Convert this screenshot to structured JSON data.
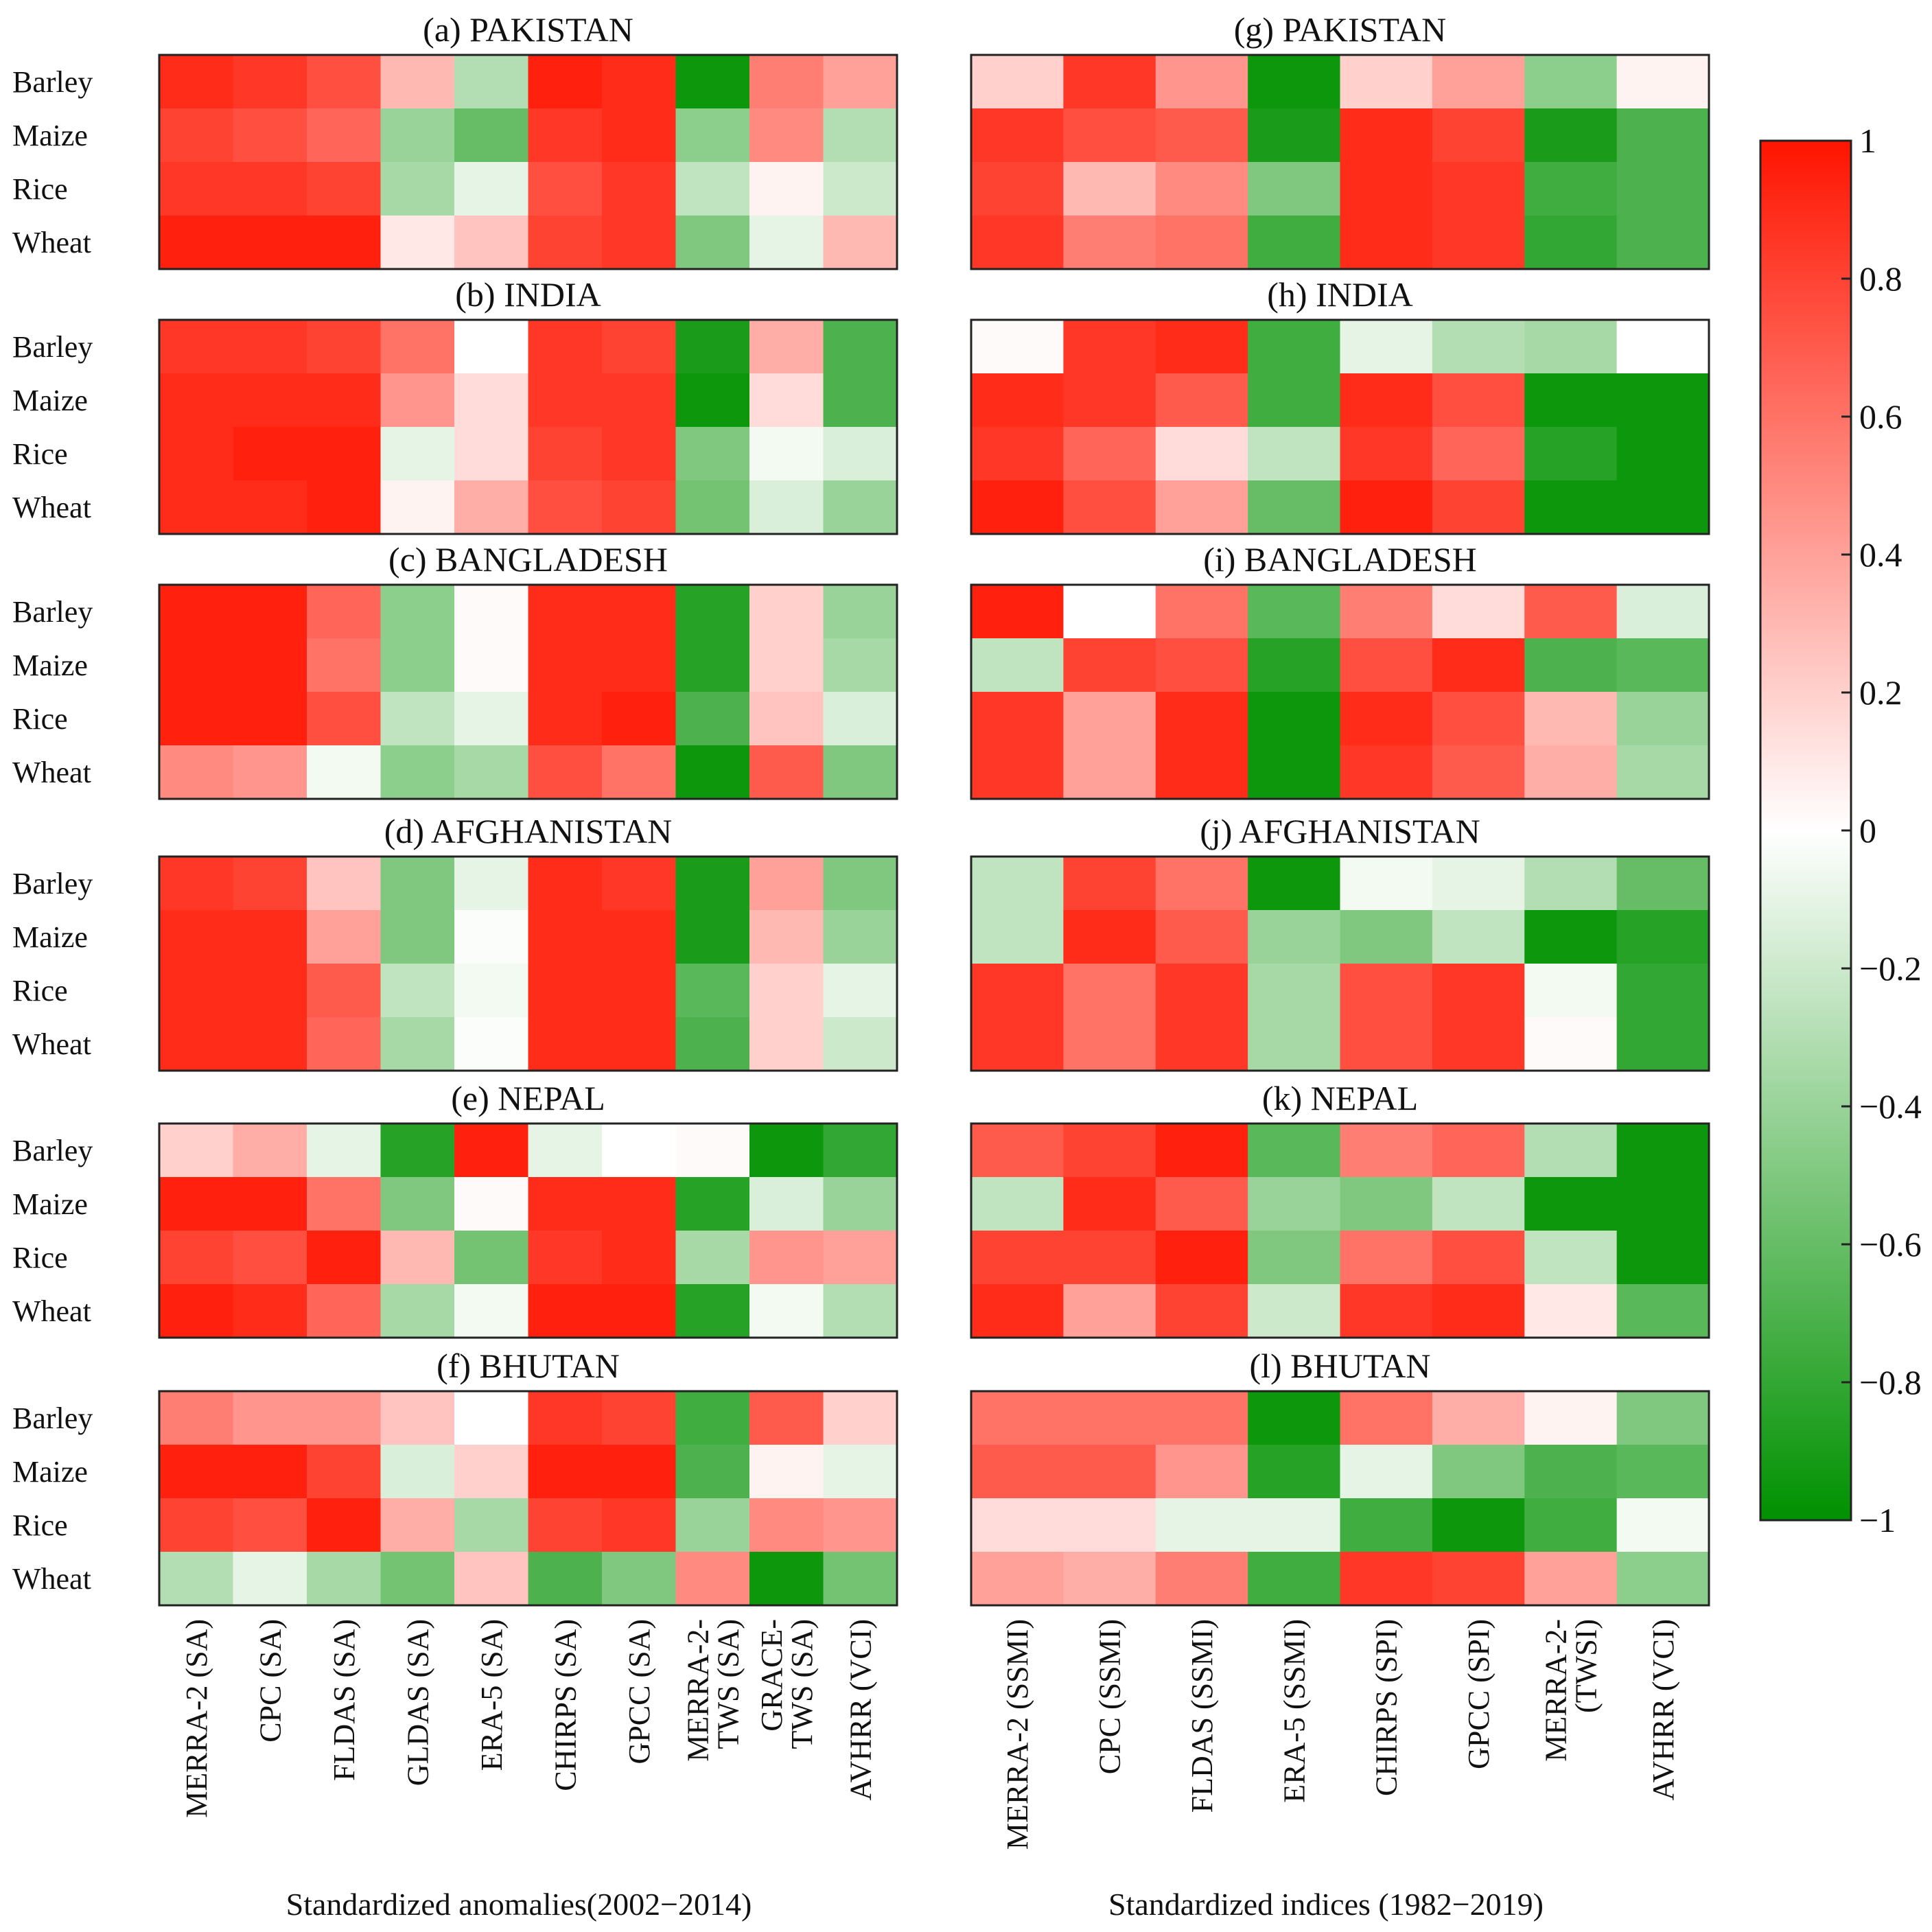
{
  "chart_data": {
    "type": "heatmap",
    "colorbar": {
      "range": [
        -1,
        1
      ],
      "ticks": [
        "1",
        "0.8",
        "0.6",
        "0.4",
        "0.2",
        "0",
        "−0.2",
        "−0.4",
        "−0.6",
        "−0.8",
        "−1"
      ],
      "tick_values": [
        1,
        0.8,
        0.6,
        0.4,
        0.2,
        0,
        -0.2,
        -0.4,
        -0.6,
        -0.8,
        -1
      ],
      "colors": {
        "negative": "#009100",
        "zero": "#ffffff",
        "positive": "#ff1400"
      }
    },
    "rows": [
      "Barley",
      "Maize",
      "Rice",
      "Wheat"
    ],
    "left": {
      "xlabel": "Standardized anomalies(2002−2014)",
      "columns": [
        [
          "MERRA-2 (SA)"
        ],
        [
          "CPC (SA)"
        ],
        [
          "FLDAS (SA)"
        ],
        [
          "GLDAS (SA)"
        ],
        [
          "ERA-5 (SA)"
        ],
        [
          "CHIRPS (SA)"
        ],
        [
          "GPCC (SA)"
        ],
        [
          "MERRA-2-",
          "TWS (SA)"
        ],
        [
          "GRACE-",
          "TWS (SA)"
        ],
        [
          "AVHRR (VCI)"
        ]
      ],
      "panels": [
        {
          "title": "(a) PAKISTAN",
          "values": [
            [
              0.9,
              0.85,
              0.75,
              0.3,
              -0.3,
              0.95,
              0.9,
              -0.95,
              0.55,
              0.4
            ],
            [
              0.8,
              0.75,
              0.65,
              -0.4,
              -0.6,
              0.85,
              0.9,
              -0.45,
              0.5,
              -0.3
            ],
            [
              0.85,
              0.85,
              0.8,
              -0.35,
              -0.1,
              0.75,
              0.85,
              -0.25,
              0.05,
              -0.2
            ],
            [
              0.95,
              0.95,
              0.95,
              0.1,
              0.25,
              0.8,
              0.85,
              -0.5,
              -0.1,
              0.3
            ]
          ]
        },
        {
          "title": "(b) INDIA",
          "values": [
            [
              0.85,
              0.85,
              0.8,
              0.6,
              0.0,
              0.85,
              0.8,
              -0.9,
              0.35,
              -0.7
            ],
            [
              0.9,
              0.9,
              0.9,
              0.45,
              0.15,
              0.85,
              0.85,
              -0.95,
              0.15,
              -0.7
            ],
            [
              0.9,
              0.95,
              0.95,
              -0.1,
              0.15,
              0.8,
              0.85,
              -0.5,
              -0.05,
              -0.15
            ],
            [
              0.9,
              0.9,
              0.95,
              0.05,
              0.35,
              0.75,
              0.8,
              -0.55,
              -0.15,
              -0.4
            ]
          ]
        },
        {
          "title": "(c) BANGLADESH",
          "values": [
            [
              0.95,
              0.95,
              0.65,
              -0.45,
              0.02,
              0.9,
              0.9,
              -0.85,
              0.2,
              -0.4
            ],
            [
              0.95,
              0.95,
              0.6,
              -0.45,
              0.02,
              0.9,
              0.9,
              -0.85,
              0.2,
              -0.35
            ],
            [
              0.95,
              0.95,
              0.75,
              -0.25,
              -0.1,
              0.9,
              0.95,
              -0.7,
              0.25,
              -0.15
            ],
            [
              0.5,
              0.45,
              -0.05,
              -0.45,
              -0.35,
              0.75,
              0.6,
              -0.95,
              0.7,
              -0.5
            ]
          ]
        },
        {
          "title": "(d) AFGHANISTAN",
          "values": [
            [
              0.85,
              0.8,
              0.25,
              -0.5,
              -0.1,
              0.9,
              0.85,
              -0.9,
              0.4,
              -0.5
            ],
            [
              0.9,
              0.9,
              0.4,
              -0.5,
              -0.02,
              0.9,
              0.9,
              -0.9,
              0.3,
              -0.4
            ],
            [
              0.9,
              0.9,
              0.7,
              -0.25,
              -0.05,
              0.9,
              0.9,
              -0.65,
              0.2,
              -0.1
            ],
            [
              0.9,
              0.9,
              0.65,
              -0.35,
              -0.02,
              0.9,
              0.9,
              -0.7,
              0.2,
              -0.2
            ]
          ]
        },
        {
          "title": "(e) NEPAL",
          "values": [
            [
              0.2,
              0.35,
              -0.1,
              -0.85,
              0.95,
              -0.1,
              0.0,
              0.02,
              -0.95,
              -0.8
            ],
            [
              0.95,
              0.95,
              0.6,
              -0.5,
              0.02,
              0.9,
              0.9,
              -0.85,
              -0.15,
              -0.4
            ],
            [
              0.8,
              0.75,
              0.95,
              0.3,
              -0.55,
              0.85,
              0.9,
              -0.35,
              0.45,
              0.4
            ],
            [
              0.95,
              0.9,
              0.65,
              -0.35,
              -0.05,
              0.95,
              0.95,
              -0.85,
              -0.05,
              -0.3
            ]
          ]
        },
        {
          "title": "(f) BHUTAN",
          "values": [
            [
              0.55,
              0.45,
              0.45,
              0.25,
              0.0,
              0.85,
              0.8,
              -0.75,
              0.7,
              0.2
            ],
            [
              0.95,
              0.95,
              0.8,
              -0.15,
              0.2,
              0.95,
              0.95,
              -0.7,
              0.05,
              -0.1
            ],
            [
              0.8,
              0.75,
              0.95,
              0.35,
              -0.35,
              0.8,
              0.85,
              -0.4,
              0.5,
              0.45
            ],
            [
              -0.3,
              -0.1,
              -0.35,
              -0.55,
              0.25,
              -0.7,
              -0.5,
              0.5,
              -0.95,
              -0.55
            ]
          ]
        }
      ]
    },
    "right": {
      "xlabel": "Standardized indices (1982−2019)",
      "columns": [
        [
          "MERRA-2 (SSMI)"
        ],
        [
          "CPC (SSMI)"
        ],
        [
          "FLDAS (SSMI)"
        ],
        [
          "ERA-5 (SSMI)"
        ],
        [
          "CHIRPS (SPI)"
        ],
        [
          "GPCC (SPI)"
        ],
        [
          "MERRA-2-",
          "(TWSI)"
        ],
        [
          "AVHRR (VCI)"
        ]
      ],
      "panels": [
        {
          "title": "(g) PAKISTAN",
          "values": [
            [
              0.2,
              0.85,
              0.45,
              -0.95,
              0.2,
              0.4,
              -0.45,
              0.05
            ],
            [
              0.85,
              0.75,
              0.7,
              -0.9,
              0.9,
              0.8,
              -0.9,
              -0.7
            ],
            [
              0.8,
              0.3,
              0.5,
              -0.5,
              0.9,
              0.85,
              -0.75,
              -0.7
            ],
            [
              0.85,
              0.55,
              0.6,
              -0.75,
              0.9,
              0.85,
              -0.8,
              -0.7
            ]
          ]
        },
        {
          "title": "(h) INDIA",
          "values": [
            [
              0.02,
              0.85,
              0.9,
              -0.75,
              -0.1,
              -0.3,
              -0.35,
              0.0
            ],
            [
              0.9,
              0.85,
              0.7,
              -0.75,
              0.9,
              0.75,
              -0.95,
              -0.95
            ],
            [
              0.85,
              0.65,
              0.15,
              -0.25,
              0.85,
              0.65,
              -0.85,
              -0.95
            ],
            [
              0.95,
              0.75,
              0.4,
              -0.6,
              0.95,
              0.8,
              -0.95,
              -0.95
            ]
          ]
        },
        {
          "title": "(i) BANGLADESH",
          "values": [
            [
              0.95,
              0.0,
              0.6,
              -0.65,
              0.55,
              0.15,
              0.7,
              -0.15
            ],
            [
              -0.25,
              0.8,
              0.75,
              -0.85,
              0.75,
              0.9,
              -0.7,
              -0.65
            ],
            [
              0.85,
              0.4,
              0.9,
              -0.95,
              0.9,
              0.75,
              0.3,
              -0.4
            ],
            [
              0.85,
              0.4,
              0.9,
              -0.95,
              0.85,
              0.7,
              0.35,
              -0.35
            ]
          ]
        },
        {
          "title": "(j) AFGHANISTAN",
          "values": [
            [
              -0.25,
              0.8,
              0.6,
              -0.95,
              -0.05,
              -0.1,
              -0.3,
              -0.6
            ],
            [
              -0.25,
              0.9,
              0.7,
              -0.4,
              -0.5,
              -0.25,
              -0.95,
              -0.85
            ],
            [
              0.85,
              0.6,
              0.85,
              -0.35,
              0.75,
              0.85,
              -0.05,
              -0.8
            ],
            [
              0.85,
              0.6,
              0.85,
              -0.35,
              0.75,
              0.85,
              0.02,
              -0.8
            ]
          ]
        },
        {
          "title": "(k) NEPAL",
          "values": [
            [
              0.7,
              0.8,
              0.95,
              -0.65,
              0.55,
              0.65,
              -0.3,
              -0.95
            ],
            [
              -0.25,
              0.9,
              0.7,
              -0.4,
              -0.5,
              -0.25,
              -0.95,
              -0.95
            ],
            [
              0.8,
              0.8,
              0.95,
              -0.5,
              0.6,
              0.75,
              -0.25,
              -0.95
            ],
            [
              0.9,
              0.4,
              0.8,
              -0.2,
              0.85,
              0.9,
              0.1,
              -0.65
            ]
          ]
        },
        {
          "title": "(l) BHUTAN",
          "values": [
            [
              0.6,
              0.6,
              0.6,
              -0.95,
              0.6,
              0.35,
              0.05,
              -0.5
            ],
            [
              0.7,
              0.7,
              0.45,
              -0.85,
              -0.1,
              -0.5,
              -0.7,
              -0.65
            ],
            [
              0.15,
              0.15,
              -0.1,
              -0.1,
              -0.75,
              -0.95,
              -0.75,
              -0.05
            ],
            [
              0.4,
              0.35,
              0.55,
              -0.75,
              0.85,
              0.8,
              0.4,
              -0.45
            ]
          ]
        }
      ]
    }
  }
}
